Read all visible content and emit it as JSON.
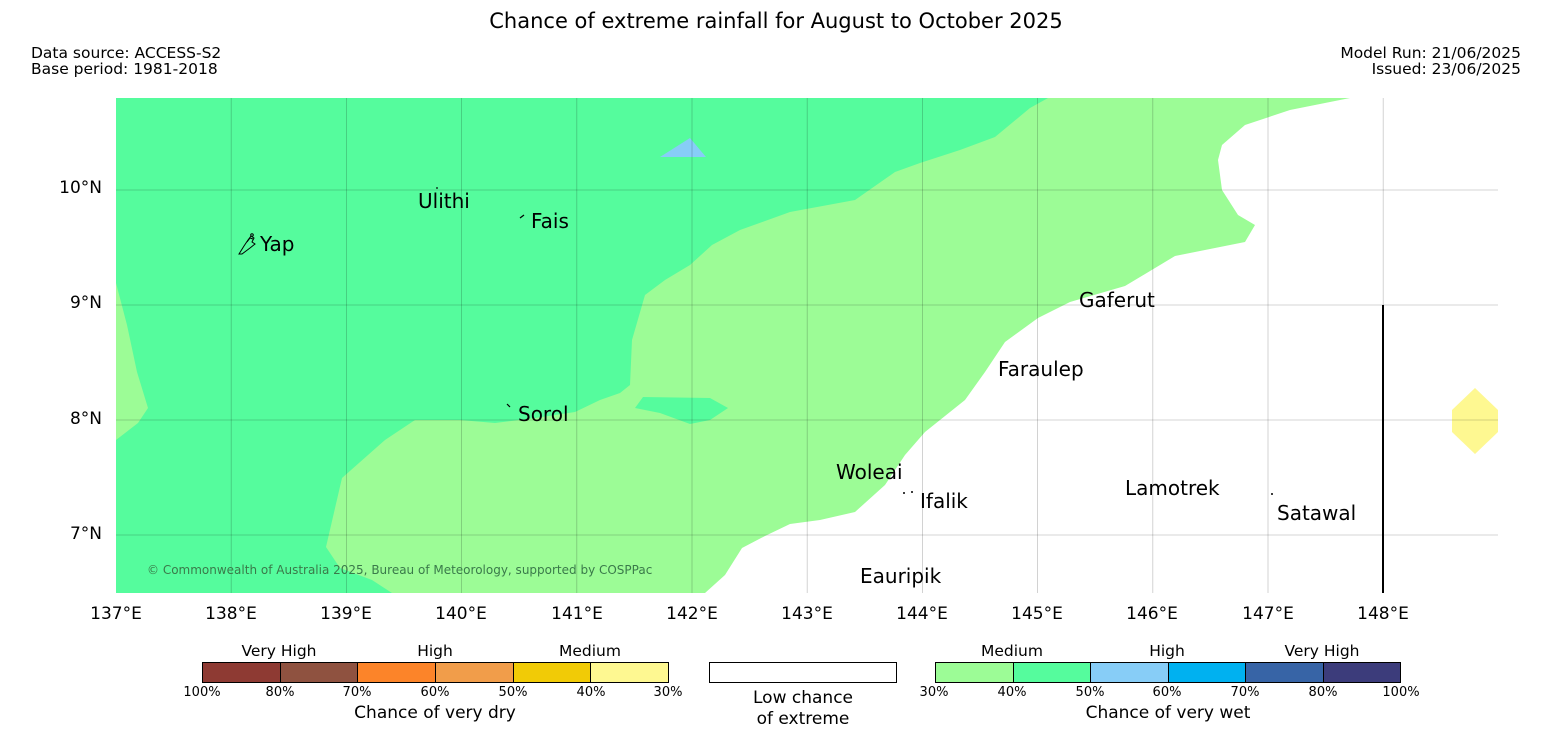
{
  "header": {
    "title": "Chance of extreme rainfall for August to October 2025",
    "data_source": "Data source: ACCESS-S2",
    "base_period": "Base period: 1981-2018",
    "model_run": "Model Run: 21/06/2025",
    "issued": "Issued: 23/06/2025"
  },
  "map": {
    "lat_labels": [
      "10°N",
      "9°N",
      "8°N",
      "7°N"
    ],
    "lon_labels": [
      "137°E",
      "138°E",
      "139°E",
      "140°E",
      "141°E",
      "142°E",
      "143°E",
      "144°E",
      "145°E",
      "146°E",
      "147°E",
      "148°E"
    ],
    "places": [
      "Ulithi",
      "Fais",
      "Yap",
      "Gaferut",
      "Faraulep",
      "Sorol",
      "Woleai",
      "Ifalik",
      "Lamotrek",
      "Satawal",
      "Eauripik"
    ],
    "copyright": "© Commonwealth of Australia 2025, Bureau of Meteorology, supported by COSPPac",
    "colors": {
      "wet_medium_light": "#9cfc96",
      "wet_medium_dark": "#55fc9d",
      "wet_high_light": "#87cdf7",
      "dry_medium_light": "#fef891",
      "low_chance": "#ffffff"
    }
  },
  "legend": {
    "dry": {
      "categories": [
        "Very High",
        "High",
        "Medium"
      ],
      "ticks": [
        "100%",
        "80%",
        "70%",
        "60%",
        "50%",
        "40%",
        "30%"
      ],
      "title": "Chance of very dry",
      "colors": [
        "#8e3a33",
        "#8f5240",
        "#fc8429",
        "#f19d4a",
        "#f1cb06",
        "#fef891"
      ]
    },
    "low": {
      "line1": "Low chance",
      "line2": "of extreme",
      "color": "#ffffff"
    },
    "wet": {
      "categories": [
        "Medium",
        "High",
        "Very High"
      ],
      "ticks": [
        "30%",
        "40%",
        "50%",
        "60%",
        "70%",
        "80%",
        "100%"
      ],
      "title": "Chance of very wet",
      "colors": [
        "#9cfc96",
        "#55fc9d",
        "#87cdf7",
        "#00b1f0",
        "#3764a6",
        "#3c3c7b"
      ]
    }
  }
}
